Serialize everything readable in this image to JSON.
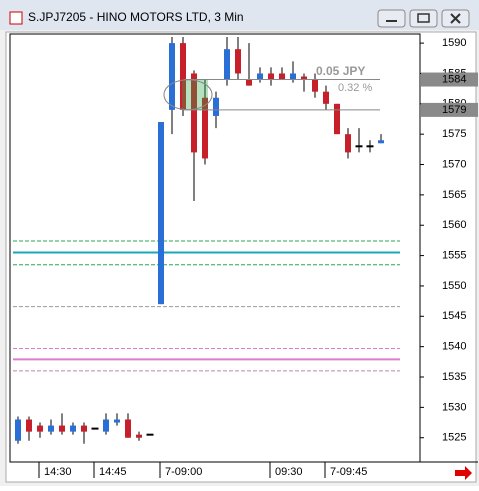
{
  "chart_data": {
    "type": "candlestick",
    "title": "S.JPJ7205 - HINO MOTORS LTD, 3 Min",
    "categories": [
      null,
      null,
      "14:30",
      null,
      null,
      null,
      null,
      "14:45",
      null,
      null,
      null,
      null,
      null,
      "7-09:00",
      null,
      null,
      null,
      null,
      null,
      null,
      null,
      null,
      null,
      "09:30",
      null,
      null,
      null,
      null,
      "7-09:45",
      null,
      null,
      null,
      null,
      null
    ],
    "open": [
      1524.5,
      1528,
      1527,
      1526,
      1527,
      1526,
      1527,
      1526.5,
      1526,
      1527.5,
      1528,
      1525.5,
      1525.5,
      1547,
      1579,
      1590,
      1585,
      1581,
      1578,
      1584,
      1589,
      1584,
      1584,
      1585,
      1585,
      1584,
      1584.5,
      1584,
      1582,
      1580,
      1575,
      1573,
      1573,
      1573.5
    ],
    "high": [
      1528.5,
      1528.5,
      1527.5,
      1528,
      1529,
      1527.5,
      1527.5,
      1526.5,
      1529,
      1529,
      1529,
      1526,
      1525.5,
      1577,
      1591,
      1591,
      1585.5,
      1584,
      1582,
      1591,
      1591,
      1590,
      1586,
      1586,
      1586,
      1587,
      1585,
      1585,
      1583,
      1580,
      1576,
      1576,
      1574,
      1575
    ],
    "low": [
      1524,
      1524.5,
      1525,
      1525.5,
      1525.5,
      1525.5,
      1524,
      1526.5,
      1525.5,
      1527,
      1525,
      1524.5,
      1525.5,
      1547,
      1575,
      1578,
      1564,
      1570,
      1576,
      1583,
      1584,
      1583,
      1583.5,
      1583,
      1584,
      1583.5,
      1582,
      1581,
      1579,
      1575,
      1571,
      1572,
      1572,
      1573.5
    ],
    "close": [
      1528,
      1526,
      1526,
      1527,
      1526,
      1527,
      1526,
      1526.5,
      1528,
      1528,
      1525,
      1525,
      1525.5,
      1577,
      1590,
      1579,
      1572,
      1571,
      1581,
      1589,
      1585,
      1583,
      1585,
      1584,
      1584,
      1585,
      1584,
      1582,
      1580,
      1575,
      1572,
      1573,
      1573,
      1574
    ],
    "up_color": "#2a6fd6",
    "down_color": "#c8202a",
    "levels": [
      {
        "value": 1557.4,
        "color": "#2aa84a",
        "style": "dashed"
      },
      {
        "value": 1555.5,
        "color": "#1aa8b8",
        "style": "solid"
      },
      {
        "value": 1553.5,
        "color": "#2aa84a",
        "style": "dashed"
      },
      {
        "value": 1546.6,
        "color": "#999999",
        "style": "dashed"
      },
      {
        "value": 1539.7,
        "color": "#e07cc8",
        "style": "dashed"
      },
      {
        "value": 1537.9,
        "color": "#e07cc8",
        "style": "solid"
      },
      {
        "value": 1536,
        "color": "#c080b8",
        "style": "dashed"
      }
    ],
    "price_markers": [
      1584,
      1579
    ],
    "annotations": [
      "0.05 JPY",
      "0.32 %"
    ],
    "ylim": [
      1521,
      1591.5
    ],
    "yticks": [
      1525,
      1530,
      1535,
      1540,
      1545,
      1550,
      1555,
      1560,
      1565,
      1570,
      1575,
      1580,
      1585,
      1590
    ]
  }
}
